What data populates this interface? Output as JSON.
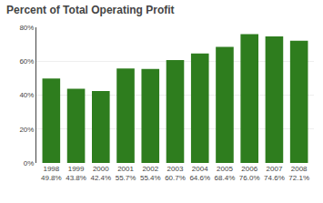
{
  "chart_data": {
    "type": "bar",
    "title": "Percent of Total Operating Profit",
    "categories": [
      "1998",
      "1999",
      "2000",
      "2001",
      "2002",
      "2003",
      "2004",
      "2005",
      "2006",
      "2007",
      "2008"
    ],
    "values": [
      49.8,
      43.8,
      42.4,
      55.7,
      55.4,
      60.7,
      64.6,
      68.4,
      76.0,
      74.6,
      72.1
    ],
    "value_labels": [
      "49.8%",
      "43.8%",
      "42.4%",
      "55.7%",
      "55.4%",
      "60.7%",
      "64.6%",
      "68.4%",
      "76.0%",
      "74.6%",
      "72.1%"
    ],
    "data_labels": true,
    "color": "#2e7d1e",
    "ylim": [
      0,
      80
    ],
    "yticks": [
      {
        "value": 0,
        "label": "0%"
      },
      {
        "value": 20,
        "label": "20%"
      },
      {
        "value": 40,
        "label": "40%"
      },
      {
        "value": 60,
        "label": "60%"
      },
      {
        "value": 80,
        "label": "80%"
      }
    ],
    "grid": true
  }
}
